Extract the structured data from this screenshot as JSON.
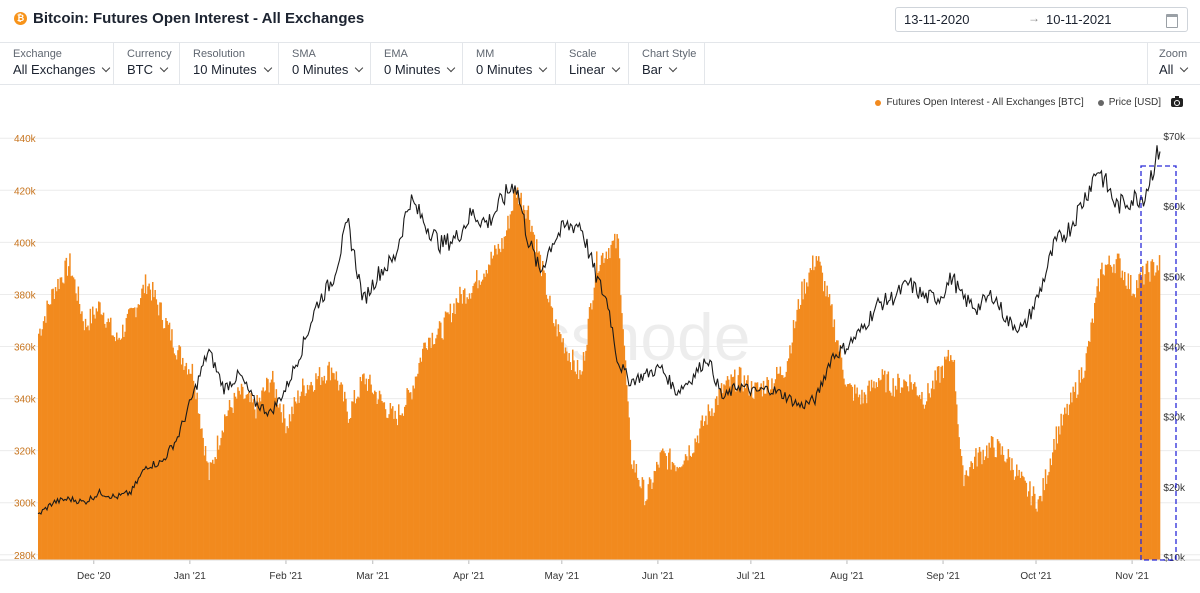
{
  "header": {
    "title": "Bitcoin: Futures Open Interest - All Exchanges",
    "icon": "bitcoin-icon",
    "date_start": "13-11-2020",
    "date_arrow": "→",
    "date_end": "10-11-2021"
  },
  "controls": [
    {
      "label": "Exchange",
      "value": "All Exchanges"
    },
    {
      "label": "Currency",
      "value": "BTC"
    },
    {
      "label": "Resolution",
      "value": "10 Minutes"
    },
    {
      "label": "SMA",
      "value": "0 Minutes"
    },
    {
      "label": "EMA",
      "value": "0 Minutes"
    },
    {
      "label": "MM",
      "value": "0 Minutes"
    },
    {
      "label": "Scale",
      "value": "Linear"
    },
    {
      "label": "Chart Style",
      "value": "Bar"
    }
  ],
  "zoom": {
    "label": "Zoom",
    "value": "All"
  },
  "watermark": "glassnode",
  "colors": {
    "oi": "#f28a1e",
    "price": "#1a1a1a",
    "left_axis": "#c8741d",
    "highlight_box": "#2a2ad8"
  },
  "chart_data": {
    "type": "bar",
    "legend": {
      "position": "top-right",
      "entries": [
        "Futures Open Interest - All Exchanges [BTC]",
        "Price [USD]"
      ]
    },
    "grid": true,
    "x_ticks": [
      "Dec '20",
      "Jan '21",
      "Feb '21",
      "Mar '21",
      "Apr '21",
      "May '21",
      "Jun '21",
      "Jul '21",
      "Aug '21",
      "Sep '21",
      "Oct '21",
      "Nov '21"
    ],
    "y_left": {
      "ticks": [
        "280k",
        "300k",
        "320k",
        "340k",
        "360k",
        "380k",
        "400k",
        "420k",
        "440k"
      ],
      "range": [
        278000,
        447000
      ]
    },
    "y_right": {
      "ticks": [
        "$10k",
        "$20k",
        "$30k",
        "$40k",
        "$50k",
        "$60k",
        "$70k"
      ],
      "range": [
        10000,
        70000
      ]
    },
    "series": [
      {
        "name": "Futures Open Interest - All Exchanges [BTC]",
        "axis": "left",
        "points": [
          [
            "2020-11-13",
            365000
          ],
          [
            "2020-11-18",
            382000
          ],
          [
            "2020-11-23",
            392000
          ],
          [
            "2020-11-28",
            368000
          ],
          [
            "2020-12-03",
            376000
          ],
          [
            "2020-12-08",
            362000
          ],
          [
            "2020-12-13",
            372000
          ],
          [
            "2020-12-18",
            385000
          ],
          [
            "2020-12-23",
            372000
          ],
          [
            "2020-12-28",
            358000
          ],
          [
            "2021-01-02",
            350000
          ],
          [
            "2021-01-07",
            310000
          ],
          [
            "2021-01-12",
            333000
          ],
          [
            "2021-01-17",
            342000
          ],
          [
            "2021-01-22",
            336000
          ],
          [
            "2021-01-27",
            348000
          ],
          [
            "2021-02-01",
            330000
          ],
          [
            "2021-02-06",
            344000
          ],
          [
            "2021-02-11",
            348000
          ],
          [
            "2021-02-16",
            352000
          ],
          [
            "2021-02-21",
            334000
          ],
          [
            "2021-02-26",
            348000
          ],
          [
            "2021-03-03",
            340000
          ],
          [
            "2021-03-08",
            332000
          ],
          [
            "2021-03-13",
            342000
          ],
          [
            "2021-03-18",
            363000
          ],
          [
            "2021-03-23",
            366000
          ],
          [
            "2021-03-28",
            378000
          ],
          [
            "2021-04-02",
            383000
          ],
          [
            "2021-04-07",
            392000
          ],
          [
            "2021-04-12",
            400000
          ],
          [
            "2021-04-16",
            420000
          ],
          [
            "2021-04-20",
            412000
          ],
          [
            "2021-04-24",
            392000
          ],
          [
            "2021-04-28",
            370000
          ],
          [
            "2021-05-02",
            360000
          ],
          [
            "2021-05-07",
            348000
          ],
          [
            "2021-05-12",
            392000
          ],
          [
            "2021-05-16",
            398000
          ],
          [
            "2021-05-19",
            400000
          ],
          [
            "2021-05-23",
            318000
          ],
          [
            "2021-05-28",
            302000
          ],
          [
            "2021-06-02",
            318000
          ],
          [
            "2021-06-07",
            315000
          ],
          [
            "2021-06-12",
            322000
          ],
          [
            "2021-06-17",
            334000
          ],
          [
            "2021-06-22",
            344000
          ],
          [
            "2021-06-27",
            348000
          ],
          [
            "2021-07-02",
            343000
          ],
          [
            "2021-07-07",
            346000
          ],
          [
            "2021-07-12",
            352000
          ],
          [
            "2021-07-17",
            380000
          ],
          [
            "2021-07-22",
            395000
          ],
          [
            "2021-07-27",
            372000
          ],
          [
            "2021-08-01",
            344000
          ],
          [
            "2021-08-06",
            340000
          ],
          [
            "2021-08-11",
            348000
          ],
          [
            "2021-08-16",
            345000
          ],
          [
            "2021-08-21",
            347000
          ],
          [
            "2021-08-26",
            340000
          ],
          [
            "2021-08-31",
            350000
          ],
          [
            "2021-09-04",
            358000
          ],
          [
            "2021-09-07",
            310000
          ],
          [
            "2021-09-12",
            318000
          ],
          [
            "2021-09-17",
            322000
          ],
          [
            "2021-09-22",
            317000
          ],
          [
            "2021-09-27",
            306000
          ],
          [
            "2021-10-02",
            300000
          ],
          [
            "2021-10-07",
            325000
          ],
          [
            "2021-10-12",
            338000
          ],
          [
            "2021-10-17",
            355000
          ],
          [
            "2021-10-22",
            390000
          ],
          [
            "2021-10-27",
            393000
          ],
          [
            "2021-11-01",
            382000
          ],
          [
            "2021-11-05",
            388000
          ],
          [
            "2021-11-10",
            392000
          ]
        ]
      },
      {
        "name": "Price [USD]",
        "axis": "right",
        "points": [
          [
            "2020-11-13",
            16000
          ],
          [
            "2020-11-18",
            17800
          ],
          [
            "2020-11-23",
            18300
          ],
          [
            "2020-11-28",
            17800
          ],
          [
            "2020-12-03",
            19200
          ],
          [
            "2020-12-08",
            18500
          ],
          [
            "2020-12-13",
            19200
          ],
          [
            "2020-12-18",
            23000
          ],
          [
            "2020-12-23",
            23500
          ],
          [
            "2020-12-28",
            27000
          ],
          [
            "2021-01-02",
            33000
          ],
          [
            "2021-01-07",
            39500
          ],
          [
            "2021-01-12",
            34000
          ],
          [
            "2021-01-17",
            36000
          ],
          [
            "2021-01-22",
            32000
          ],
          [
            "2021-01-27",
            30500
          ],
          [
            "2021-02-01",
            34000
          ],
          [
            "2021-02-06",
            39500
          ],
          [
            "2021-02-11",
            46000
          ],
          [
            "2021-02-16",
            49500
          ],
          [
            "2021-02-21",
            57500
          ],
          [
            "2021-02-26",
            46500
          ],
          [
            "2021-03-03",
            50500
          ],
          [
            "2021-03-08",
            52500
          ],
          [
            "2021-03-13",
            61000
          ],
          [
            "2021-03-18",
            57500
          ],
          [
            "2021-03-23",
            54500
          ],
          [
            "2021-03-28",
            55500
          ],
          [
            "2021-04-02",
            59000
          ],
          [
            "2021-04-07",
            57500
          ],
          [
            "2021-04-12",
            61000
          ],
          [
            "2021-04-16",
            63500
          ],
          [
            "2021-04-20",
            55500
          ],
          [
            "2021-04-24",
            50500
          ],
          [
            "2021-04-28",
            55000
          ],
          [
            "2021-05-02",
            57000
          ],
          [
            "2021-05-07",
            57500
          ],
          [
            "2021-05-12",
            50000
          ],
          [
            "2021-05-16",
            46000
          ],
          [
            "2021-05-19",
            38000
          ],
          [
            "2021-05-23",
            35000
          ],
          [
            "2021-05-28",
            36000
          ],
          [
            "2021-06-02",
            37000
          ],
          [
            "2021-06-07",
            33500
          ],
          [
            "2021-06-12",
            35500
          ],
          [
            "2021-06-17",
            38500
          ],
          [
            "2021-06-22",
            32500
          ],
          [
            "2021-06-27",
            34500
          ],
          [
            "2021-07-02",
            33500
          ],
          [
            "2021-07-07",
            34000
          ],
          [
            "2021-07-12",
            33000
          ],
          [
            "2021-07-17",
            31500
          ],
          [
            "2021-07-22",
            32500
          ],
          [
            "2021-07-27",
            38500
          ],
          [
            "2021-08-01",
            40000
          ],
          [
            "2021-08-06",
            42500
          ],
          [
            "2021-08-11",
            46000
          ],
          [
            "2021-08-16",
            47000
          ],
          [
            "2021-08-21",
            49000
          ],
          [
            "2021-08-26",
            47000
          ],
          [
            "2021-08-31",
            47000
          ],
          [
            "2021-09-04",
            50000
          ],
          [
            "2021-09-07",
            47000
          ],
          [
            "2021-09-12",
            45500
          ],
          [
            "2021-09-17",
            47500
          ],
          [
            "2021-09-22",
            43500
          ],
          [
            "2021-09-27",
            42500
          ],
          [
            "2021-10-02",
            47500
          ],
          [
            "2021-10-07",
            54500
          ],
          [
            "2021-10-12",
            57000
          ],
          [
            "2021-10-17",
            61500
          ],
          [
            "2021-10-21",
            65500
          ],
          [
            "2021-10-27",
            60000
          ],
          [
            "2021-11-01",
            61000
          ],
          [
            "2021-11-05",
            61500
          ],
          [
            "2021-11-10",
            68500
          ]
        ]
      }
    ]
  }
}
